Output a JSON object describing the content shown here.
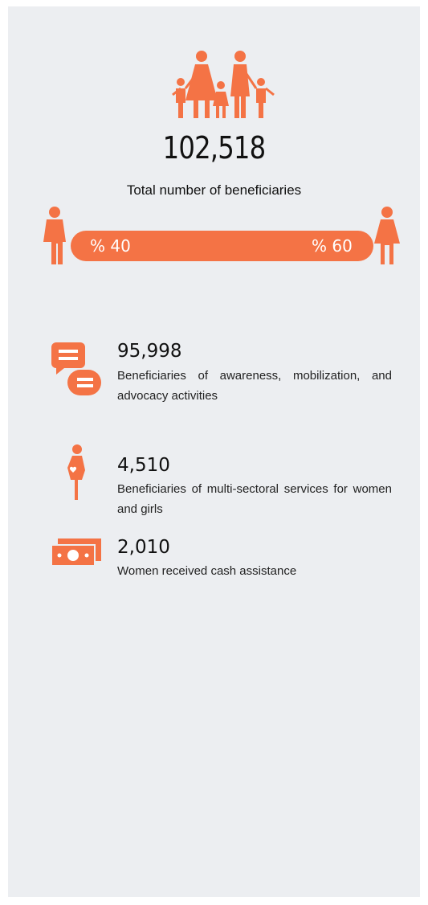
{
  "summary": {
    "total": "102,518",
    "total_label": "Total number of beneficiaries",
    "male_share": "% 40",
    "female_share": "% 60"
  },
  "items": [
    {
      "number": "95,998",
      "label": "Beneficiaries of awareness, mobilization, and advocacy activities"
    },
    {
      "number": "4,510",
      "label": "Beneficiaries of multi-sectoral services for women and girls"
    },
    {
      "number": "2,010",
      "label": "Women received cash assistance"
    }
  ]
}
